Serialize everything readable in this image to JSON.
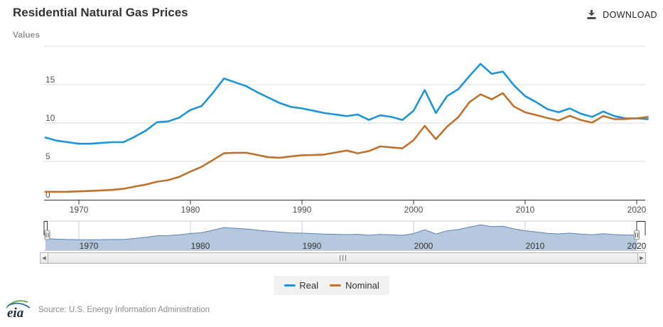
{
  "header": {
    "title": "Residential Natural Gas Prices",
    "download_label": "DOWNLOAD"
  },
  "chart": {
    "y_axis_title": "Values"
  },
  "chart_data": {
    "type": "line",
    "title": "Residential Natural Gas Prices",
    "ylabel": "Values",
    "ylim": [
      0,
      20
    ],
    "y_ticks": [
      0,
      5,
      10,
      15
    ],
    "x_ticks": [
      1970,
      1980,
      1990,
      2000,
      2010,
      2020
    ],
    "grid": true,
    "legend_position": "bottom",
    "x": [
      1967,
      1968,
      1969,
      1970,
      1971,
      1972,
      1973,
      1974,
      1975,
      1976,
      1977,
      1978,
      1979,
      1980,
      1981,
      1982,
      1983,
      1984,
      1985,
      1986,
      1987,
      1988,
      1989,
      1990,
      1991,
      1992,
      1993,
      1994,
      1995,
      1996,
      1997,
      1998,
      1999,
      2000,
      2001,
      2002,
      2003,
      2004,
      2005,
      2006,
      2007,
      2008,
      2009,
      2010,
      2011,
      2012,
      2013,
      2014,
      2015,
      2016,
      2017,
      2018,
      2019,
      2020,
      2021
    ],
    "series": [
      {
        "name": "Real",
        "color": "#2095d5",
        "values": [
          8.1,
          7.7,
          7.5,
          7.3,
          7.3,
          7.4,
          7.5,
          7.5,
          8.2,
          9.0,
          10.1,
          10.2,
          10.7,
          11.7,
          12.2,
          13.9,
          15.8,
          15.3,
          14.8,
          14.0,
          13.3,
          12.6,
          12.1,
          11.9,
          11.6,
          11.3,
          11.1,
          10.9,
          11.1,
          10.4,
          11.0,
          10.8,
          10.4,
          11.6,
          14.3,
          11.3,
          13.5,
          14.4,
          16.1,
          17.7,
          16.4,
          16.7,
          14.9,
          13.5,
          12.7,
          11.8,
          11.4,
          11.9,
          11.2,
          10.8,
          11.5,
          10.9,
          10.6,
          10.6,
          10.5
        ]
      },
      {
        "name": "Nominal",
        "color": "#bd732f",
        "values": [
          1.04,
          1.04,
          1.05,
          1.09,
          1.15,
          1.21,
          1.29,
          1.43,
          1.71,
          1.98,
          2.35,
          2.56,
          2.98,
          3.68,
          4.29,
          5.17,
          6.06,
          6.12,
          6.12,
          5.83,
          5.54,
          5.47,
          5.64,
          5.8,
          5.82,
          5.89,
          6.16,
          6.41,
          6.06,
          6.34,
          6.94,
          6.82,
          6.69,
          7.76,
          9.63,
          7.89,
          9.52,
          10.74,
          12.7,
          13.73,
          13.08,
          13.89,
          12.14,
          11.39,
          11.03,
          10.65,
          10.32,
          10.94,
          10.38,
          10.05,
          10.91,
          10.5,
          10.51,
          10.6,
          10.8
        ]
      }
    ],
    "navigator": {
      "series": "Real",
      "fill": "#b6c8de",
      "line": "#5c83b2",
      "x_labels": [
        1970,
        1980,
        1990,
        2000,
        2010,
        2020
      ]
    }
  },
  "colors": {
    "grid": "#d9d9d9",
    "axis": "#333333",
    "tick_label": "#4d4d4d",
    "y_label": "#555555"
  },
  "footer": {
    "logo_text": "eia",
    "source": "Source: U.S. Energy Information Administration"
  }
}
